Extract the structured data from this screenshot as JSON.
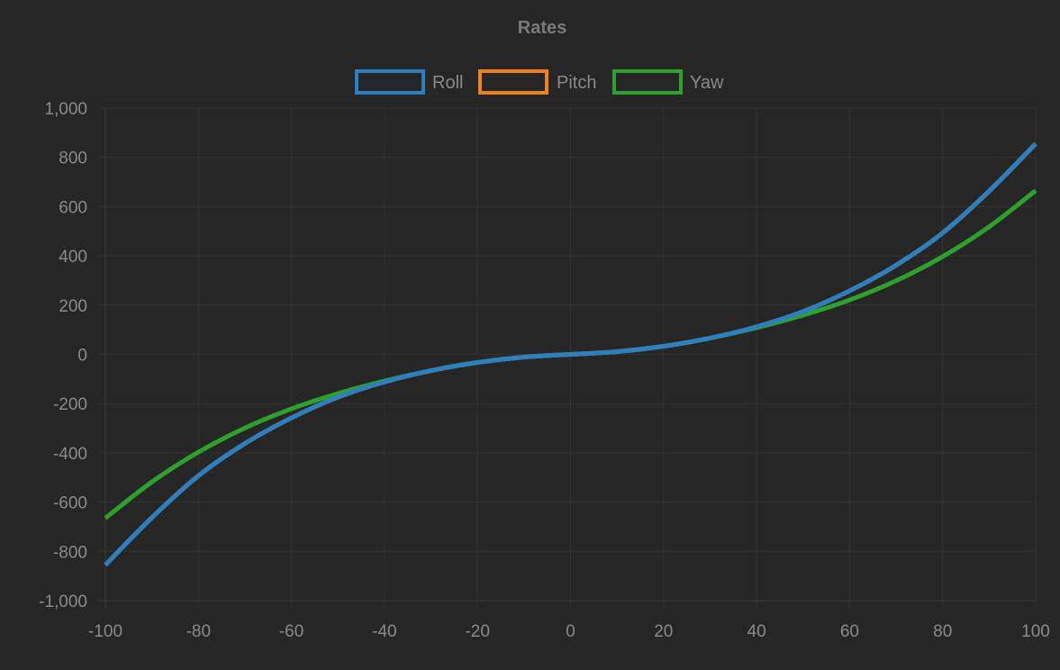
{
  "chart_data": {
    "type": "line",
    "title": "Rates",
    "xlabel": "",
    "ylabel": "",
    "xlim": [
      -100,
      100
    ],
    "ylim": [
      -1000,
      1000
    ],
    "x_ticks": [
      -100,
      -80,
      -60,
      -40,
      -20,
      0,
      20,
      40,
      60,
      80,
      100
    ],
    "y_ticks": [
      -1000,
      -800,
      -600,
      -400,
      -200,
      0,
      200,
      400,
      600,
      800,
      1000
    ],
    "x_tick_labels": [
      "-100",
      "-80",
      "-60",
      "-40",
      "-20",
      "0",
      "20",
      "40",
      "60",
      "80",
      "100"
    ],
    "y_tick_labels": [
      "-1,000",
      "-800",
      "-600",
      "-400",
      "-200",
      "0",
      "200",
      "400",
      "600",
      "800",
      "1,000"
    ],
    "grid": true,
    "legend_position": "top-center",
    "x": [
      -100,
      -90,
      -80,
      -70,
      -60,
      -50,
      -40,
      -30,
      -20,
      -10,
      0,
      10,
      20,
      30,
      40,
      50,
      60,
      70,
      80,
      90,
      100
    ],
    "series": [
      {
        "name": "Roll",
        "color": "#2e7fbf",
        "values": [
          -855,
          -663,
          -493,
          -362,
          -258,
          -174,
          -112,
          -66,
          -33,
          -11,
          0,
          11,
          33,
          66,
          112,
          174,
          258,
          362,
          493,
          663,
          855
        ]
      },
      {
        "name": "Pitch",
        "color": "#f0821e",
        "values": [
          -855,
          -663,
          -493,
          -362,
          -258,
          -174,
          -112,
          -66,
          -33,
          -11,
          0,
          11,
          33,
          66,
          112,
          174,
          258,
          362,
          493,
          663,
          855
        ]
      },
      {
        "name": "Yaw",
        "color": "#2ea02e",
        "values": [
          -665,
          -518,
          -397,
          -299,
          -221,
          -159,
          -108,
          -66,
          -33,
          -11,
          0,
          11,
          33,
          66,
          108,
          159,
          221,
          299,
          397,
          518,
          665
        ]
      }
    ]
  }
}
